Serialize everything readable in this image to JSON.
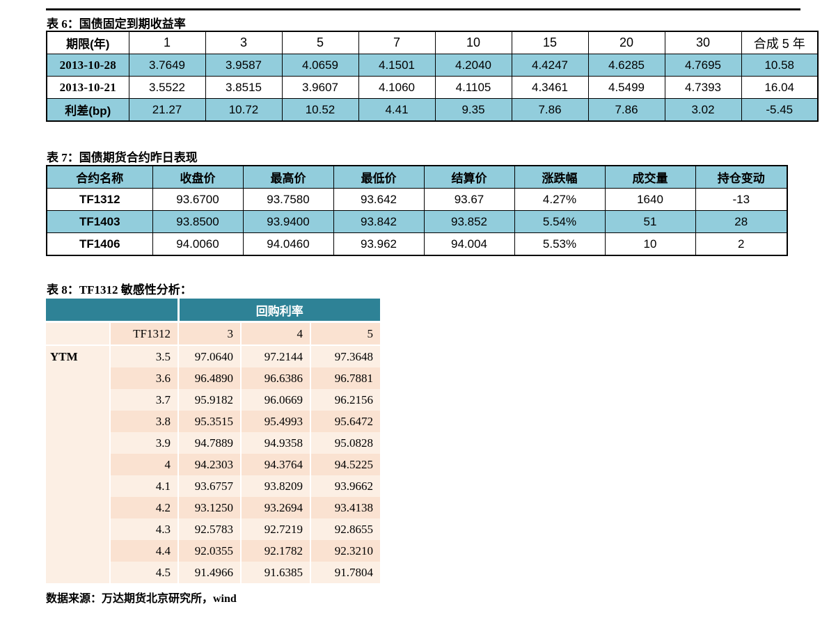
{
  "page": {
    "source_note": "数据来源：万达期货北京研究所，wind"
  },
  "colors": {
    "band_teal_light": "#92CDDC",
    "band_teal_dark": "#2E8296",
    "band_peach_light": "#FCEFE4",
    "band_peach_dark": "#FAE2D1",
    "rule_black": "#111111"
  },
  "table6": {
    "title": "表 6：国债固定到期收益率",
    "header": [
      "期限(年)",
      "1",
      "3",
      "5",
      "7",
      "10",
      "15",
      "20",
      "30",
      "合成 5 年"
    ],
    "rows": [
      {
        "label": "2013-10-28",
        "values": [
          "3.7649",
          "3.9587",
          "4.0659",
          "4.1501",
          "4.2040",
          "4.4247",
          "4.6285",
          "4.7695",
          "10.58"
        ],
        "highlight": true
      },
      {
        "label": "2013-10-21",
        "values": [
          "3.5522",
          "3.8515",
          "3.9607",
          "4.1060",
          "4.1105",
          "4.3461",
          "4.5499",
          "4.7393",
          "16.04"
        ],
        "highlight": false
      },
      {
        "label": "利差(bp)",
        "values": [
          "21.27",
          "10.72",
          "10.52",
          "4.41",
          "9.35",
          "7.86",
          "7.86",
          "3.02",
          "-5.45"
        ],
        "highlight": true
      }
    ]
  },
  "table7": {
    "title": "表 7：国债期货合约昨日表现",
    "header": [
      "合约名称",
      "收盘价",
      "最高价",
      "最低价",
      "结算价",
      "涨跌幅",
      "成交量",
      "持仓变动"
    ],
    "rows": [
      {
        "label": "TF1312",
        "values": [
          "93.6700",
          "93.7580",
          "93.642",
          "93.67",
          "4.27%",
          "1640",
          "-13"
        ],
        "highlight": false
      },
      {
        "label": "TF1403",
        "values": [
          "93.8500",
          "93.9400",
          "93.842",
          "93.852",
          "5.54%",
          "51",
          "28"
        ],
        "highlight": true
      },
      {
        "label": "TF1406",
        "values": [
          "94.0060",
          "94.0460",
          "93.962",
          "94.004",
          "5.53%",
          "10",
          "2"
        ],
        "highlight": false
      }
    ]
  },
  "table8": {
    "title": "表 8：TF1312 敏感性分析：",
    "group_header": "回购利率",
    "contract_label": "TF1312",
    "repo_rate_cols": [
      "3",
      "4",
      "5"
    ],
    "row_axis_label": "YTM",
    "rows": [
      {
        "ytm": "3.5",
        "values": [
          "97.0640",
          "97.2144",
          "97.3648"
        ]
      },
      {
        "ytm": "3.6",
        "values": [
          "96.4890",
          "96.6386",
          "96.7881"
        ]
      },
      {
        "ytm": "3.7",
        "values": [
          "95.9182",
          "96.0669",
          "96.2156"
        ]
      },
      {
        "ytm": "3.8",
        "values": [
          "95.3515",
          "95.4993",
          "95.6472"
        ]
      },
      {
        "ytm": "3.9",
        "values": [
          "94.7889",
          "94.9358",
          "95.0828"
        ]
      },
      {
        "ytm": "4",
        "values": [
          "94.2303",
          "94.3764",
          "94.5225"
        ]
      },
      {
        "ytm": "4.1",
        "values": [
          "93.6757",
          "93.8209",
          "93.9662"
        ]
      },
      {
        "ytm": "4.2",
        "values": [
          "93.1250",
          "93.2694",
          "93.4138"
        ]
      },
      {
        "ytm": "4.3",
        "values": [
          "92.5783",
          "92.7219",
          "92.8655"
        ]
      },
      {
        "ytm": "4.4",
        "values": [
          "92.0355",
          "92.1782",
          "92.3210"
        ]
      },
      {
        "ytm": "4.5",
        "values": [
          "91.4966",
          "91.6385",
          "91.7804"
        ]
      }
    ]
  }
}
